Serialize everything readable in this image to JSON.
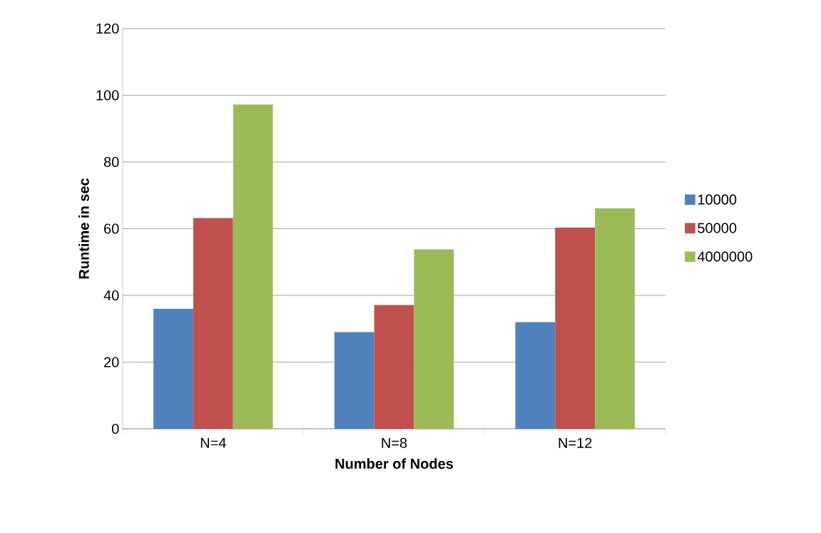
{
  "chart_data": {
    "type": "bar",
    "xlabel": "Number of Nodes",
    "ylabel": "Runtime in sec",
    "categories": [
      "N=4",
      "N=8",
      "N=12"
    ],
    "series": [
      {
        "name": "10000",
        "color": "#4f81bd",
        "values": [
          36,
          29,
          32
        ]
      },
      {
        "name": "50000",
        "color": "#c0504d",
        "values": [
          63.2,
          37.1,
          60.3
        ]
      },
      {
        "name": "4000000",
        "color": "#9bbb59",
        "values": [
          97.2,
          53.8,
          66.1
        ]
      }
    ],
    "ylim": [
      0,
      120
    ],
    "yticks": [
      0,
      20,
      40,
      60,
      80,
      100,
      120
    ],
    "grid": "y",
    "legend": "right"
  }
}
